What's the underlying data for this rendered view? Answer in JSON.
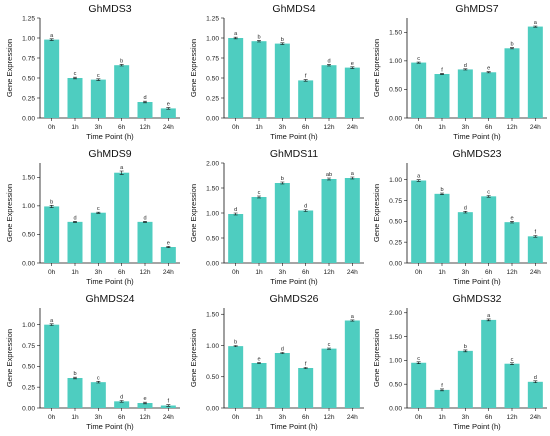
{
  "colors": {
    "bar": "#4ECDC0",
    "axis": "#111111",
    "text": "#111111"
  },
  "chart_data": [
    {
      "type": "bar",
      "title": "GhMDS3",
      "xlabel": "Time Point (h)",
      "ylabel": "Gene Expression",
      "categories": [
        "0h",
        "1h",
        "3h",
        "6h",
        "12h",
        "24h"
      ],
      "values": [
        0.98,
        0.5,
        0.48,
        0.66,
        0.2,
        0.12
      ],
      "errors": [
        0.01,
        0.01,
        0.01,
        0.01,
        0.01,
        0.01
      ],
      "letters": [
        "a",
        "c",
        "c",
        "b",
        "d",
        "e"
      ],
      "ylim": [
        0,
        1.25
      ],
      "yticks": [
        "0.00",
        "0.25",
        "0.50",
        "0.75",
        "1.00",
        "1.25"
      ]
    },
    {
      "type": "bar",
      "title": "GhMDS4",
      "xlabel": "Time Point (h)",
      "ylabel": "Gene Expression",
      "categories": [
        "0h",
        "1h",
        "3h",
        "6h",
        "12h",
        "24h"
      ],
      "values": [
        1.0,
        0.96,
        0.93,
        0.47,
        0.66,
        0.63
      ],
      "errors": [
        0.01,
        0.01,
        0.01,
        0.01,
        0.01,
        0.01
      ],
      "letters": [
        "a",
        "b",
        "b",
        "f",
        "d",
        "e"
      ],
      "ylim": [
        0,
        1.25
      ],
      "yticks": [
        "0.00",
        "0.25",
        "0.50",
        "0.75",
        "1.00",
        "1.25"
      ]
    },
    {
      "type": "bar",
      "title": "GhMDS7",
      "xlabel": "Time Point (h)",
      "ylabel": "Gene Expression",
      "categories": [
        "0h",
        "1h",
        "3h",
        "6h",
        "12h",
        "24h"
      ],
      "values": [
        0.97,
        0.77,
        0.85,
        0.8,
        1.22,
        1.6
      ],
      "errors": [
        0.01,
        0.01,
        0.01,
        0.01,
        0.01,
        0.01
      ],
      "letters": [
        "c",
        "f",
        "d",
        "e",
        "b",
        "a"
      ],
      "ylim": [
        0,
        1.75
      ],
      "yticks": [
        "0.00",
        "0.50",
        "1.00",
        "1.50"
      ]
    },
    {
      "type": "bar",
      "title": "GhMDS9",
      "xlabel": "Time Point (h)",
      "ylabel": "Gene Expression",
      "categories": [
        "0h",
        "1h",
        "3h",
        "6h",
        "12h",
        "24h"
      ],
      "values": [
        0.99,
        0.72,
        0.88,
        1.58,
        0.72,
        0.28
      ],
      "errors": [
        0.02,
        0.01,
        0.01,
        0.03,
        0.01,
        0.01
      ],
      "letters": [
        "b",
        "d",
        "c",
        "a",
        "d",
        "e"
      ],
      "ylim": [
        0,
        1.75
      ],
      "yticks": [
        "0.00",
        "0.50",
        "1.00",
        "1.50"
      ]
    },
    {
      "type": "bar",
      "title": "GhMDS11",
      "xlabel": "Time Point (h)",
      "ylabel": "Gene Expression",
      "categories": [
        "0h",
        "1h",
        "3h",
        "6h",
        "12h",
        "24h"
      ],
      "values": [
        0.98,
        1.32,
        1.6,
        1.05,
        1.68,
        1.7
      ],
      "errors": [
        0.02,
        0.02,
        0.02,
        0.02,
        0.02,
        0.02
      ],
      "letters": [
        "d",
        "c",
        "b",
        "d",
        "ab",
        "a"
      ],
      "ylim": [
        0,
        2.0
      ],
      "yticks": [
        "0.00",
        "0.50",
        "1.00",
        "1.50",
        "2.00"
      ]
    },
    {
      "type": "bar",
      "title": "GhMDS23",
      "xlabel": "Time Point (h)",
      "ylabel": "Gene Expression",
      "categories": [
        "0h",
        "1h",
        "3h",
        "6h",
        "12h",
        "24h"
      ],
      "values": [
        0.99,
        0.83,
        0.61,
        0.8,
        0.49,
        0.32
      ],
      "errors": [
        0.01,
        0.01,
        0.01,
        0.01,
        0.01,
        0.01
      ],
      "letters": [
        "a",
        "b",
        "d",
        "c",
        "e",
        "f"
      ],
      "ylim": [
        0,
        1.2
      ],
      "yticks": [
        "0.00",
        "0.25",
        "0.50",
        "0.75",
        "1.00"
      ]
    },
    {
      "type": "bar",
      "title": "GhMDS24",
      "xlabel": "Time Point (h)",
      "ylabel": "Gene Expression",
      "categories": [
        "0h",
        "1h",
        "3h",
        "6h",
        "12h",
        "24h"
      ],
      "values": [
        1.0,
        0.36,
        0.31,
        0.08,
        0.06,
        0.03
      ],
      "errors": [
        0.01,
        0.01,
        0.01,
        0.01,
        0.01,
        0.01
      ],
      "letters": [
        "a",
        "b",
        "c",
        "d",
        "e",
        "f"
      ],
      "ylim": [
        0,
        1.2
      ],
      "yticks": [
        "0.00",
        "0.25",
        "0.50",
        "0.75",
        "1.00"
      ]
    },
    {
      "type": "bar",
      "title": "GhMDS26",
      "xlabel": "Time Point (h)",
      "ylabel": "Gene Expression",
      "categories": [
        "0h",
        "1h",
        "3h",
        "6h",
        "12h",
        "24h"
      ],
      "values": [
        0.99,
        0.72,
        0.88,
        0.64,
        0.95,
        1.4
      ],
      "errors": [
        0.01,
        0.01,
        0.01,
        0.01,
        0.01,
        0.01
      ],
      "letters": [
        "b",
        "e",
        "d",
        "f",
        "c",
        "a"
      ],
      "ylim": [
        0,
        1.6
      ],
      "yticks": [
        "0.00",
        "0.50",
        "1.00",
        "1.50"
      ]
    },
    {
      "type": "bar",
      "title": "GhMDS32",
      "xlabel": "Time Point (h)",
      "ylabel": "Gene Expression",
      "categories": [
        "0h",
        "1h",
        "3h",
        "6h",
        "12h",
        "24h"
      ],
      "values": [
        0.95,
        0.38,
        1.2,
        1.85,
        0.93,
        0.55
      ],
      "errors": [
        0.02,
        0.02,
        0.02,
        0.02,
        0.02,
        0.02
      ],
      "letters": [
        "c",
        "f",
        "b",
        "a",
        "c",
        "d"
      ],
      "ylim": [
        0,
        2.1
      ],
      "yticks": [
        "0.00",
        "0.50",
        "1.00",
        "1.50",
        "2.00"
      ]
    }
  ]
}
